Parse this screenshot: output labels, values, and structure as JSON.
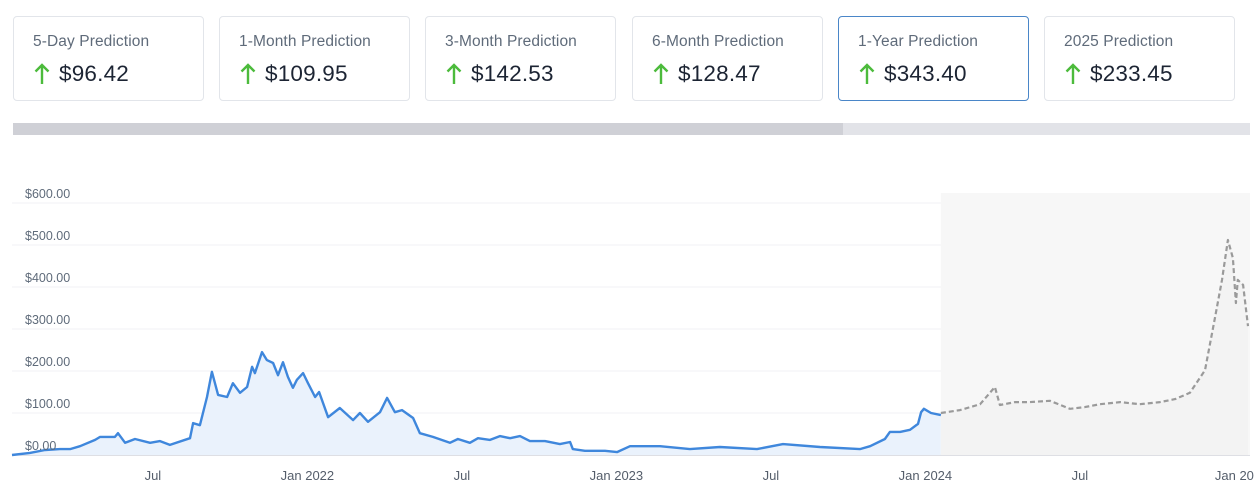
{
  "cards": [
    {
      "label": "5-Day Prediction",
      "value": "$96.42",
      "trend": "up",
      "active": false
    },
    {
      "label": "1-Month Prediction",
      "value": "$109.95",
      "trend": "up",
      "active": false
    },
    {
      "label": "3-Month Prediction",
      "value": "$142.53",
      "trend": "up",
      "active": false
    },
    {
      "label": "6-Month Prediction",
      "value": "$128.47",
      "trend": "up",
      "active": false
    },
    {
      "label": "1-Year Prediction",
      "value": "$343.40",
      "trend": "up",
      "active": true
    },
    {
      "label": "2025 Prediction",
      "value": "$233.45",
      "trend": "up",
      "active": false
    }
  ],
  "colors": {
    "up_arrow": "#4cbb3c",
    "history_line": "#3f87dc",
    "history_fill": "#eaf2fc",
    "forecast_line": "#9a9a9a",
    "forecast_fill": "#f3f3f3",
    "active_card_border": "#4a86c8"
  },
  "chart_data": {
    "type": "line",
    "title": "",
    "xlabel": "",
    "ylabel": "",
    "ylim": [
      0,
      600
    ],
    "yticks": [
      "$0.00",
      "$100.00",
      "$200.00",
      "$300.00",
      "$400.00",
      "$500.00",
      "$600.00"
    ],
    "ytick_values": [
      0,
      100,
      200,
      300,
      400,
      500,
      600
    ],
    "xticks": [
      "Jul",
      "Jan 2022",
      "Jul",
      "Jan 2023",
      "Jul",
      "Jan 2024",
      "Jul",
      "Jan 20"
    ],
    "xtick_years": [
      2021.5,
      2022.0,
      2022.5,
      2023.0,
      2023.5,
      2024.0,
      2024.5,
      2025.0
    ],
    "xlim": [
      2021.044,
      2025.044
    ],
    "grid": true,
    "legend": "none",
    "series": [
      {
        "name": "Historical price",
        "style": "solid",
        "points": [
          [
            2021.044,
            0
          ],
          [
            2021.102,
            5
          ],
          [
            2021.151,
            12
          ],
          [
            2021.199,
            14
          ],
          [
            2021.232,
            14
          ],
          [
            2021.264,
            21
          ],
          [
            2021.313,
            36
          ],
          [
            2021.329,
            43
          ],
          [
            2021.377,
            43
          ],
          [
            2021.387,
            52
          ],
          [
            2021.41,
            29
          ],
          [
            2021.442,
            38
          ],
          [
            2021.491,
            29
          ],
          [
            2021.523,
            33
          ],
          [
            2021.555,
            24
          ],
          [
            2021.62,
            40
          ],
          [
            2021.63,
            76
          ],
          [
            2021.652,
            71
          ],
          [
            2021.675,
            138
          ],
          [
            2021.691,
            198
          ],
          [
            2021.711,
            143
          ],
          [
            2021.74,
            138
          ],
          [
            2021.759,
            171
          ],
          [
            2021.782,
            148
          ],
          [
            2021.805,
            162
          ],
          [
            2021.821,
            210
          ],
          [
            2021.83,
            195
          ],
          [
            2021.853,
            245
          ],
          [
            2021.869,
            226
          ],
          [
            2021.889,
            219
          ],
          [
            2021.905,
            190
          ],
          [
            2021.921,
            221
          ],
          [
            2021.937,
            186
          ],
          [
            2021.953,
            160
          ],
          [
            2021.966,
            179
          ],
          [
            2021.986,
            195
          ],
          [
            2022.002,
            171
          ],
          [
            2022.025,
            138
          ],
          [
            2022.038,
            150
          ],
          [
            2022.067,
            90
          ],
          [
            2022.105,
            112
          ],
          [
            2022.148,
            83
          ],
          [
            2022.17,
            100
          ],
          [
            2022.196,
            79
          ],
          [
            2022.235,
            102
          ],
          [
            2022.258,
            136
          ],
          [
            2022.283,
            102
          ],
          [
            2022.306,
            107
          ],
          [
            2022.342,
            88
          ],
          [
            2022.364,
            52
          ],
          [
            2022.406,
            43
          ],
          [
            2022.461,
            29
          ],
          [
            2022.487,
            38
          ],
          [
            2022.526,
            29
          ],
          [
            2022.552,
            40
          ],
          [
            2022.591,
            36
          ],
          [
            2022.623,
            45
          ],
          [
            2022.656,
            40
          ],
          [
            2022.688,
            45
          ],
          [
            2022.72,
            33
          ],
          [
            2022.769,
            33
          ],
          [
            2022.817,
            26
          ],
          [
            2022.85,
            31
          ],
          [
            2022.859,
            14
          ],
          [
            2022.898,
            10
          ],
          [
            2022.963,
            10
          ],
          [
            2023.002,
            7
          ],
          [
            2023.044,
            21
          ],
          [
            2023.141,
            21
          ],
          [
            2023.238,
            14
          ],
          [
            2023.335,
            19
          ],
          [
            2023.455,
            14
          ],
          [
            2023.539,
            26
          ],
          [
            2023.659,
            19
          ],
          [
            2023.788,
            14
          ],
          [
            2023.821,
            21
          ],
          [
            2023.869,
            38
          ],
          [
            2023.885,
            55
          ],
          [
            2023.918,
            55
          ],
          [
            2023.95,
            60
          ],
          [
            2023.976,
            74
          ],
          [
            2023.986,
            102
          ],
          [
            2023.995,
            110
          ],
          [
            2024.018,
            100
          ],
          [
            2024.05,
            95
          ]
        ]
      },
      {
        "name": "Forecast",
        "style": "dashed",
        "points": [
          [
            2024.05,
            100
          ],
          [
            2024.112,
            107
          ],
          [
            2024.177,
            121
          ],
          [
            2024.225,
            162
          ],
          [
            2024.241,
            119
          ],
          [
            2024.29,
            126
          ],
          [
            2024.338,
            126
          ],
          [
            2024.403,
            129
          ],
          [
            2024.468,
            110
          ],
          [
            2024.516,
            114
          ],
          [
            2024.565,
            121
          ],
          [
            2024.63,
            126
          ],
          [
            2024.694,
            121
          ],
          [
            2024.759,
            126
          ],
          [
            2024.808,
            133
          ],
          [
            2024.856,
            148
          ],
          [
            2024.905,
            202
          ],
          [
            2024.937,
            326
          ],
          [
            2024.96,
            417
          ],
          [
            2024.979,
            512
          ],
          [
            2024.995,
            469
          ],
          [
            2025.005,
            362
          ],
          [
            2025.011,
            417
          ],
          [
            2025.028,
            405
          ],
          [
            2025.044,
            307
          ]
        ]
      }
    ]
  }
}
